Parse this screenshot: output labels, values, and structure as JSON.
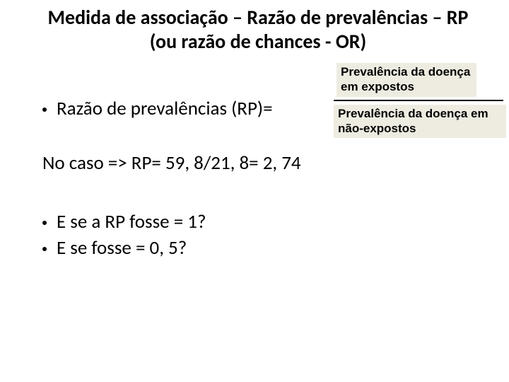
{
  "title": {
    "line1": "Medida de associação – Razão de prevalências – RP",
    "line2": "(ou razão de chances - OR)"
  },
  "formula": {
    "lhs": "Razão de prevalências (RP)=",
    "numerator": "Prevalência da doença em expostos",
    "denominator": "Prevalência da doença em não-expostos"
  },
  "case_line": "No caso => RP= 59, 8/21, 8= 2, 74",
  "questions": {
    "q1": "E se a RP fosse = 1?",
    "q2": "E se fosse = 0, 5?"
  }
}
